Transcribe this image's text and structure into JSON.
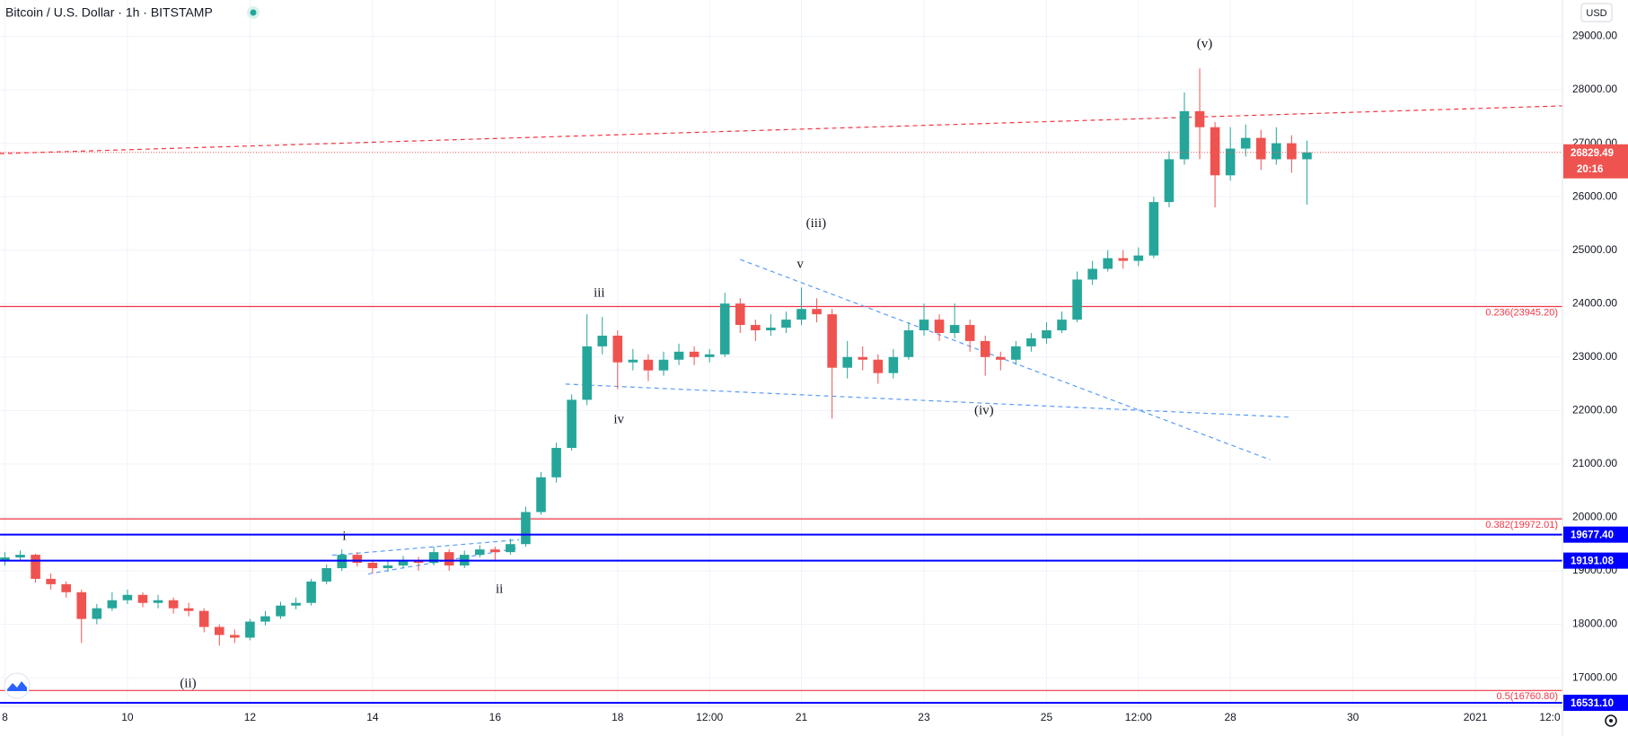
{
  "chart_data": {
    "type": "candlestick",
    "title": "Bitcoin / U.S. Dollar · 1h · BITSTAMP",
    "currency": "USD",
    "up_color": "#26a69a",
    "down_color": "#ef5350",
    "x": [
      8,
      8.25,
      8.5,
      8.75,
      9,
      9.25,
      9.5,
      9.75,
      10,
      10.25,
      10.5,
      10.75,
      11,
      11.25,
      11.5,
      11.75,
      12,
      12.25,
      12.5,
      12.75,
      13,
      13.25,
      13.5,
      13.75,
      14,
      14.25,
      14.5,
      14.75,
      15,
      15.25,
      15.5,
      15.75,
      16,
      16.25,
      16.5,
      16.75,
      17,
      17.25,
      17.5,
      17.75,
      18,
      18.25,
      18.5,
      18.75,
      19,
      19.25,
      19.5,
      19.75,
      20,
      20.25,
      20.5,
      20.75,
      21,
      21.25,
      21.5,
      21.75,
      22,
      22.25,
      22.5,
      22.75,
      23,
      23.25,
      23.5,
      23.75,
      24,
      24.25,
      24.5,
      24.75,
      25,
      25.25,
      25.5,
      25.75,
      26,
      26.25,
      26.5,
      26.75,
      27,
      27.25,
      27.5,
      27.75,
      28,
      28.25,
      28.5,
      28.75,
      29,
      29.25
    ],
    "open": [
      19200,
      19250,
      19300,
      18850,
      18750,
      18600,
      18100,
      18300,
      18450,
      18550,
      18400,
      18450,
      18300,
      18250,
      17950,
      17800,
      17750,
      18050,
      18150,
      18350,
      18400,
      18800,
      19050,
      19300,
      19150,
      19050,
      19100,
      19200,
      19150,
      19350,
      19100,
      19300,
      19400,
      19350,
      19500,
      20100,
      20750,
      21300,
      22200,
      23200,
      23400,
      22900,
      22950,
      22750,
      22950,
      23100,
      23000,
      23050,
      24000,
      23600,
      23500,
      23550,
      23700,
      23900,
      23800,
      22800,
      23000,
      22950,
      22700,
      23000,
      23500,
      23700,
      23450,
      23600,
      23300,
      23000,
      22950,
      23200,
      23350,
      23500,
      23700,
      24450,
      24650,
      24850,
      24800,
      24900,
      25900,
      26700,
      27600,
      27300,
      26400,
      26900,
      27100,
      26700,
      27000,
      26700
    ],
    "high": [
      19350,
      19380,
      19320,
      18950,
      18800,
      18650,
      18380,
      18600,
      18650,
      18600,
      18550,
      18500,
      18400,
      18300,
      18000,
      17900,
      18100,
      18250,
      18420,
      18500,
      18850,
      19120,
      19400,
      19350,
      19200,
      19180,
      19280,
      19260,
      19450,
      19400,
      19380,
      19480,
      19450,
      19600,
      20200,
      20850,
      21400,
      22300,
      23800,
      23750,
      23500,
      23150,
      23050,
      23100,
      23250,
      23200,
      23150,
      24200,
      24100,
      23700,
      23800,
      23850,
      24300,
      24100,
      23900,
      23300,
      23200,
      23050,
      23150,
      23650,
      24000,
      23800,
      24000,
      23700,
      23400,
      23100,
      23300,
      23450,
      23650,
      23850,
      24600,
      24800,
      25000,
      25000,
      25050,
      26000,
      26850,
      27950,
      28400,
      27400,
      27300,
      27350,
      27250,
      27300,
      27150,
      27050
    ],
    "low": [
      19100,
      19180,
      18780,
      18650,
      18500,
      17650,
      18000,
      18250,
      18380,
      18320,
      18300,
      18200,
      18150,
      17850,
      17600,
      17650,
      17700,
      17980,
      18100,
      18280,
      18350,
      18750,
      19000,
      19080,
      18950,
      18980,
      19050,
      19000,
      19100,
      19000,
      19050,
      19250,
      19200,
      19300,
      19450,
      20050,
      20650,
      21250,
      22100,
      23050,
      22400,
      22750,
      22550,
      22650,
      22850,
      22850,
      22900,
      23000,
      23450,
      23300,
      23400,
      23450,
      23600,
      23650,
      21850,
      22600,
      22750,
      22500,
      22600,
      22950,
      23400,
      23300,
      23350,
      23100,
      22650,
      22750,
      22850,
      23100,
      23250,
      23450,
      23650,
      24350,
      24600,
      24650,
      24700,
      24850,
      25800,
      26600,
      26700,
      25800,
      26300,
      26750,
      26500,
      26600,
      26450,
      25850
    ],
    "close": [
      19250,
      19300,
      18850,
      18750,
      18600,
      18100,
      18300,
      18450,
      18550,
      18400,
      18450,
      18300,
      18250,
      17950,
      17800,
      17750,
      18050,
      18150,
      18350,
      18400,
      18800,
      19050,
      19300,
      19150,
      19050,
      19100,
      19200,
      19150,
      19350,
      19100,
      19300,
      19400,
      19350,
      19500,
      20100,
      20750,
      21300,
      22200,
      23200,
      23400,
      22900,
      22950,
      22750,
      22950,
      23100,
      23000,
      23050,
      24000,
      23600,
      23500,
      23550,
      23700,
      23900,
      23800,
      22800,
      23000,
      22950,
      22700,
      23000,
      23500,
      23700,
      23450,
      23600,
      23300,
      23000,
      22950,
      23200,
      23350,
      23500,
      23700,
      24450,
      24650,
      24850,
      24800,
      24900,
      25900,
      26700,
      27600,
      27300,
      26400,
      26900,
      27100,
      26700,
      27000,
      26700,
      26829.49
    ],
    "xlim": [
      7.92,
      33.42
    ],
    "ylim": [
      16464,
      29680
    ],
    "xticks": [
      8,
      10,
      12,
      14,
      16,
      18,
      {
        "value": 19.5,
        "label": "12:00"
      },
      21,
      23,
      25,
      {
        "value": 26.5,
        "label": "12:00"
      },
      28,
      30,
      {
        "value": 32,
        "label": "2021"
      },
      {
        "value": 33.5,
        "label": "12:0"
      }
    ],
    "yticks": [
      {
        "value": 17000,
        "label": "17000.00"
      },
      {
        "value": 18000,
        "label": "18000.00"
      },
      {
        "value": 19000,
        "label": "19000.00"
      },
      {
        "value": 20000,
        "label": "20000.00"
      },
      {
        "value": 21000,
        "label": "21000.00"
      },
      {
        "value": 22000,
        "label": "22000.00"
      },
      {
        "value": 23000,
        "label": "23000.00"
      },
      {
        "value": 24000,
        "label": "24000.00"
      },
      {
        "value": 25000,
        "label": "25000.00"
      },
      {
        "value": 26000,
        "label": "26000.00"
      },
      {
        "value": 27000,
        "label": "27000.00"
      },
      {
        "value": 28000,
        "label": "28000.00"
      },
      {
        "value": 29000,
        "label": "29000.00"
      }
    ],
    "grid": true,
    "fib_levels": [
      {
        "value": 23945.2,
        "label": "0.236(23945.20)"
      },
      {
        "value": 19972.01,
        "label": "0.382(19972.01)"
      },
      {
        "value": 16760.8,
        "label": "0.5(16760.80)"
      }
    ],
    "fib_color": "#f23645",
    "price_lines": [
      {
        "value": 19677.4,
        "label": "19677.40"
      },
      {
        "value": 19191.08,
        "label": "19191.08"
      },
      {
        "value": 16531.1,
        "label": "16531.10"
      }
    ],
    "price_line_color": "#0000ff",
    "last_price": 26829.49,
    "countdown": "20:16",
    "trendlines": [
      {
        "x": [
          7.92,
          33.42
        ],
        "y": [
          26806,
          27699
        ],
        "color": "#f23645"
      },
      {
        "x": [
          17.15,
          29.0
        ],
        "y": [
          22495,
          21874
        ],
        "color": "#5b9cf6"
      },
      {
        "x": [
          20.0,
          28.65
        ],
        "y": [
          24825,
          21078
        ],
        "color": "#5b9cf6"
      },
      {
        "x": [
          13.34,
          16.39
        ],
        "y": [
          19291,
          19582
        ],
        "color": "#5b9cf6"
      },
      {
        "x": [
          13.93,
          16.39
        ],
        "y": [
          18942,
          19427
        ],
        "color": "#5b9cf6"
      }
    ],
    "annotations": [
      {
        "text": "(v)",
        "x": 27.58,
        "y": 28845
      },
      {
        "text": "(iii)",
        "x": 21.24,
        "y": 25485
      },
      {
        "text": "v",
        "x": 20.98,
        "y": 24728
      },
      {
        "text": "iii",
        "x": 17.7,
        "y": 24184
      },
      {
        "text": "iv",
        "x": 18.02,
        "y": 21816
      },
      {
        "text": "(iv)",
        "x": 23.98,
        "y": 21990
      },
      {
        "text": "i",
        "x": 13.54,
        "y": 19641
      },
      {
        "text": "ii",
        "x": 16.07,
        "y": 18650
      },
      {
        "text": "(ii)",
        "x": 10.99,
        "y": 16883
      }
    ]
  }
}
